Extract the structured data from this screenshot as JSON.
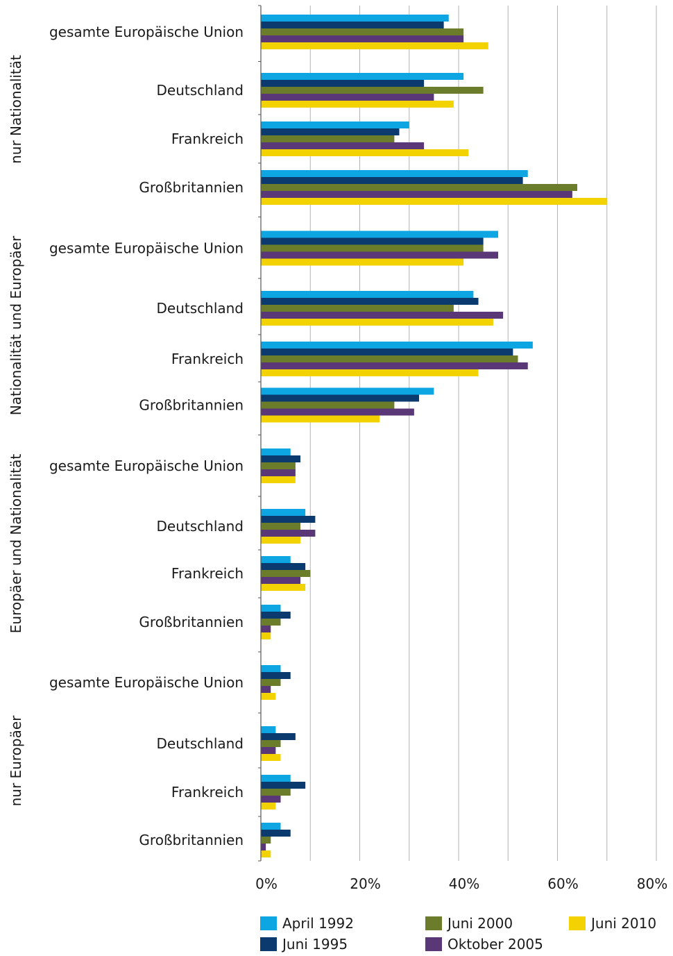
{
  "chart_data": {
    "type": "bar",
    "orientation": "horizontal",
    "grid": true,
    "legend_position": "bottom",
    "xlim": [
      0,
      80
    ],
    "x_ticks": [
      "0%",
      "20%",
      "40%",
      "60%",
      "80%"
    ],
    "series": [
      {
        "name": "April 1992",
        "color": "#0ea5e3"
      },
      {
        "name": "Juni 1995",
        "color": "#0b3a6e"
      },
      {
        "name": "Juni 2000",
        "color": "#6b7d2a"
      },
      {
        "name": "Oktober 2005",
        "color": "#5a3878"
      },
      {
        "name": "Juni 2010",
        "color": "#f2d200"
      }
    ],
    "groups": [
      {
        "label": "nur Nationalität",
        "categories": [
          {
            "label": "gesamte Europäische Union",
            "values": [
              38,
              37,
              41,
              41,
              46
            ]
          },
          {
            "label": "Deutschland",
            "values": [
              41,
              33,
              45,
              35,
              39
            ]
          },
          {
            "label": "Frankreich",
            "values": [
              30,
              28,
              27,
              33,
              42
            ]
          },
          {
            "label": "Großbritannien",
            "values": [
              54,
              53,
              64,
              63,
              70
            ]
          }
        ]
      },
      {
        "label": "Nationalität und Europäer",
        "categories": [
          {
            "label": "gesamte Europäische Union",
            "values": [
              48,
              45,
              45,
              48,
              41
            ]
          },
          {
            "label": "Deutschland",
            "values": [
              43,
              44,
              39,
              49,
              47
            ]
          },
          {
            "label": "Frankreich",
            "values": [
              55,
              51,
              52,
              54,
              44
            ]
          },
          {
            "label": "Großbritannien",
            "values": [
              35,
              32,
              27,
              31,
              24
            ]
          }
        ]
      },
      {
        "label": "Europäer und Nationalität",
        "categories": [
          {
            "label": "gesamte Europäische Union",
            "values": [
              6,
              8,
              7,
              7,
              7
            ]
          },
          {
            "label": "Deutschland",
            "values": [
              9,
              11,
              8,
              11,
              8
            ]
          },
          {
            "label": "Frankreich",
            "values": [
              6,
              9,
              10,
              8,
              9
            ]
          },
          {
            "label": "Großbritannien",
            "values": [
              4,
              6,
              4,
              2,
              2
            ]
          }
        ]
      },
      {
        "label": "nur Europäer",
        "categories": [
          {
            "label": "gesamte Europäische Union",
            "values": [
              4,
              6,
              4,
              2,
              3
            ]
          },
          {
            "label": "Deutschland",
            "values": [
              3,
              7,
              4,
              3,
              4
            ]
          },
          {
            "label": "Frankreich",
            "values": [
              6,
              9,
              6,
              4,
              3
            ]
          },
          {
            "label": "Großbritannien",
            "values": [
              4,
              6,
              2,
              1,
              2
            ]
          }
        ]
      }
    ]
  }
}
